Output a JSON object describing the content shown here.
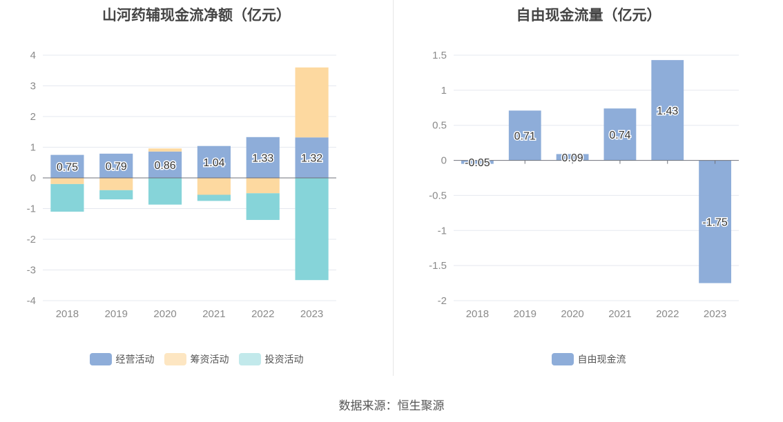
{
  "colors": {
    "operating": "#8eadd9",
    "financing": "#fdd9a0",
    "investing": "#86d4d9",
    "free_cf": "#8eadd9",
    "grid": "#e5e8ef",
    "axis": "#6e7079"
  },
  "source_text": "数据来源：恒生聚源",
  "chart_data": [
    {
      "type": "bar",
      "stacked": true,
      "title": "山河药辅现金流净额（亿元）",
      "categories": [
        "2018",
        "2019",
        "2020",
        "2021",
        "2022",
        "2023"
      ],
      "ylim": [
        -4,
        4
      ],
      "yticks": [
        4,
        3,
        2,
        1,
        0,
        -1,
        -2,
        -3,
        -4
      ],
      "grid": true,
      "legend_position": "bottom",
      "series": [
        {
          "name": "经营活动",
          "color_key": "operating",
          "values": [
            0.75,
            0.79,
            0.86,
            1.04,
            1.33,
            1.32
          ],
          "labels": [
            "0.75",
            "0.79",
            "0.86",
            "1.04",
            "1.33",
            "1.32"
          ]
        },
        {
          "name": "筹资活动",
          "color_key": "financing",
          "values": [
            -0.2,
            -0.4,
            0.1,
            -0.55,
            -0.5,
            2.28
          ]
        },
        {
          "name": "投资活动",
          "color_key": "investing",
          "values": [
            -0.9,
            -0.3,
            -0.87,
            -0.2,
            -0.87,
            -3.33
          ]
        }
      ]
    },
    {
      "type": "bar",
      "title": "自由现金流量（亿元）",
      "categories": [
        "2018",
        "2019",
        "2020",
        "2021",
        "2022",
        "2023"
      ],
      "ylim": [
        -2,
        1.5
      ],
      "yticks": [
        1.5,
        1,
        0.5,
        0,
        -0.5,
        -1,
        -1.5,
        -2
      ],
      "grid": true,
      "legend_position": "bottom",
      "series": [
        {
          "name": "自由现金流",
          "color_key": "free_cf",
          "values": [
            -0.05,
            0.71,
            0.09,
            0.74,
            1.43,
            -1.75
          ],
          "labels": [
            "-0.05",
            "0.71",
            "0.09",
            "0.74",
            "1.43",
            "-1.75"
          ]
        }
      ]
    }
  ]
}
